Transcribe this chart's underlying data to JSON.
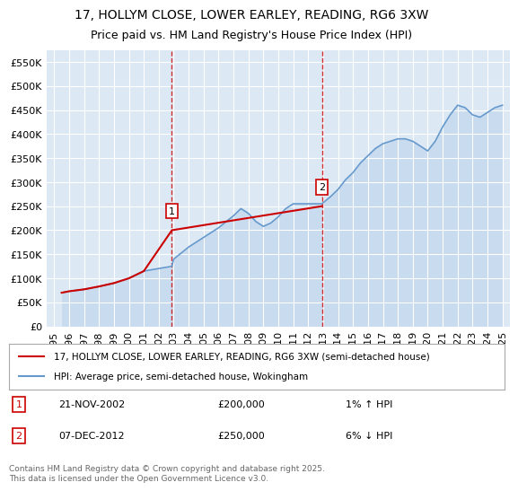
{
  "title": "17, HOLLYM CLOSE, LOWER EARLEY, READING, RG6 3XW",
  "subtitle": "Price paid vs. HM Land Registry's House Price Index (HPI)",
  "xlabel": "",
  "ylabel": "",
  "ylim": [
    0,
    575000
  ],
  "yticks": [
    0,
    50000,
    100000,
    150000,
    200000,
    250000,
    300000,
    350000,
    400000,
    450000,
    500000,
    550000
  ],
  "ytick_labels": [
    "£0",
    "£50K",
    "£100K",
    "£150K",
    "£200K",
    "£250K",
    "£300K",
    "£350K",
    "£400K",
    "£450K",
    "£500K",
    "£550K"
  ],
  "background_color": "#ffffff",
  "plot_bg_color": "#dce9f5",
  "grid_color": "#ffffff",
  "sale_dates": [
    1995.5,
    1996.0,
    1997.0,
    1998.0,
    1999.0,
    2000.0,
    2001.0,
    2002.88,
    2003.0,
    2004.0,
    2005.0,
    2006.0,
    2007.0,
    2007.5,
    2008.0,
    2008.5,
    2009.0,
    2009.5,
    2010.0,
    2010.5,
    2011.0,
    2012.92,
    2013.5,
    2014.0,
    2014.5,
    2015.0,
    2015.5,
    2016.0,
    2016.5,
    2017.0,
    2017.5,
    2018.0,
    2018.5,
    2019.0,
    2019.5,
    2020.0,
    2020.5,
    2021.0,
    2021.5,
    2022.0,
    2022.5,
    2023.0,
    2023.5,
    2024.0,
    2024.5,
    2025.0
  ],
  "hpi_values": [
    70000,
    73000,
    77000,
    83000,
    90000,
    100000,
    115000,
    125000,
    140000,
    165000,
    185000,
    205000,
    230000,
    245000,
    235000,
    218000,
    208000,
    215000,
    228000,
    245000,
    255000,
    255000,
    270000,
    285000,
    305000,
    320000,
    340000,
    355000,
    370000,
    380000,
    385000,
    390000,
    390000,
    385000,
    375000,
    365000,
    385000,
    415000,
    440000,
    460000,
    455000,
    440000,
    435000,
    445000,
    455000,
    460000
  ],
  "price_dates": [
    1995.5,
    1996.0,
    1997.0,
    1998.0,
    1999.0,
    2000.0,
    2001.0,
    2002.88,
    2012.92
  ],
  "price_values": [
    70000,
    73000,
    77000,
    83000,
    90000,
    100000,
    115000,
    200000,
    250000
  ],
  "sale1_date": 2002.88,
  "sale1_price": 200000,
  "sale1_label": "1",
  "sale2_date": 2012.92,
  "sale2_price": 250000,
  "sale2_label": "2",
  "sale1_vline_date": 2002.88,
  "sale2_vline_date": 2012.92,
  "legend_line1": "17, HOLLYM CLOSE, LOWER EARLEY, READING, RG6 3XW (semi-detached house)",
  "legend_line2": "HPI: Average price, semi-detached house, Wokingham",
  "annotation1_date": "21-NOV-2002",
  "annotation1_price": "£200,000",
  "annotation1_hpi": "1% ↑ HPI",
  "annotation2_date": "07-DEC-2012",
  "annotation2_price": "£250,000",
  "annotation2_hpi": "6% ↓ HPI",
  "footnote": "Contains HM Land Registry data © Crown copyright and database right 2025.\nThis data is licensed under the Open Government Licence v3.0.",
  "line_color_red": "#cc0000",
  "line_color_blue": "#6699cc",
  "hpi_fill_color": "#aec6e8",
  "title_fontsize": 10,
  "subtitle_fontsize": 9,
  "tick_fontsize": 8,
  "xmin": 1994.5,
  "xmax": 2025.5
}
